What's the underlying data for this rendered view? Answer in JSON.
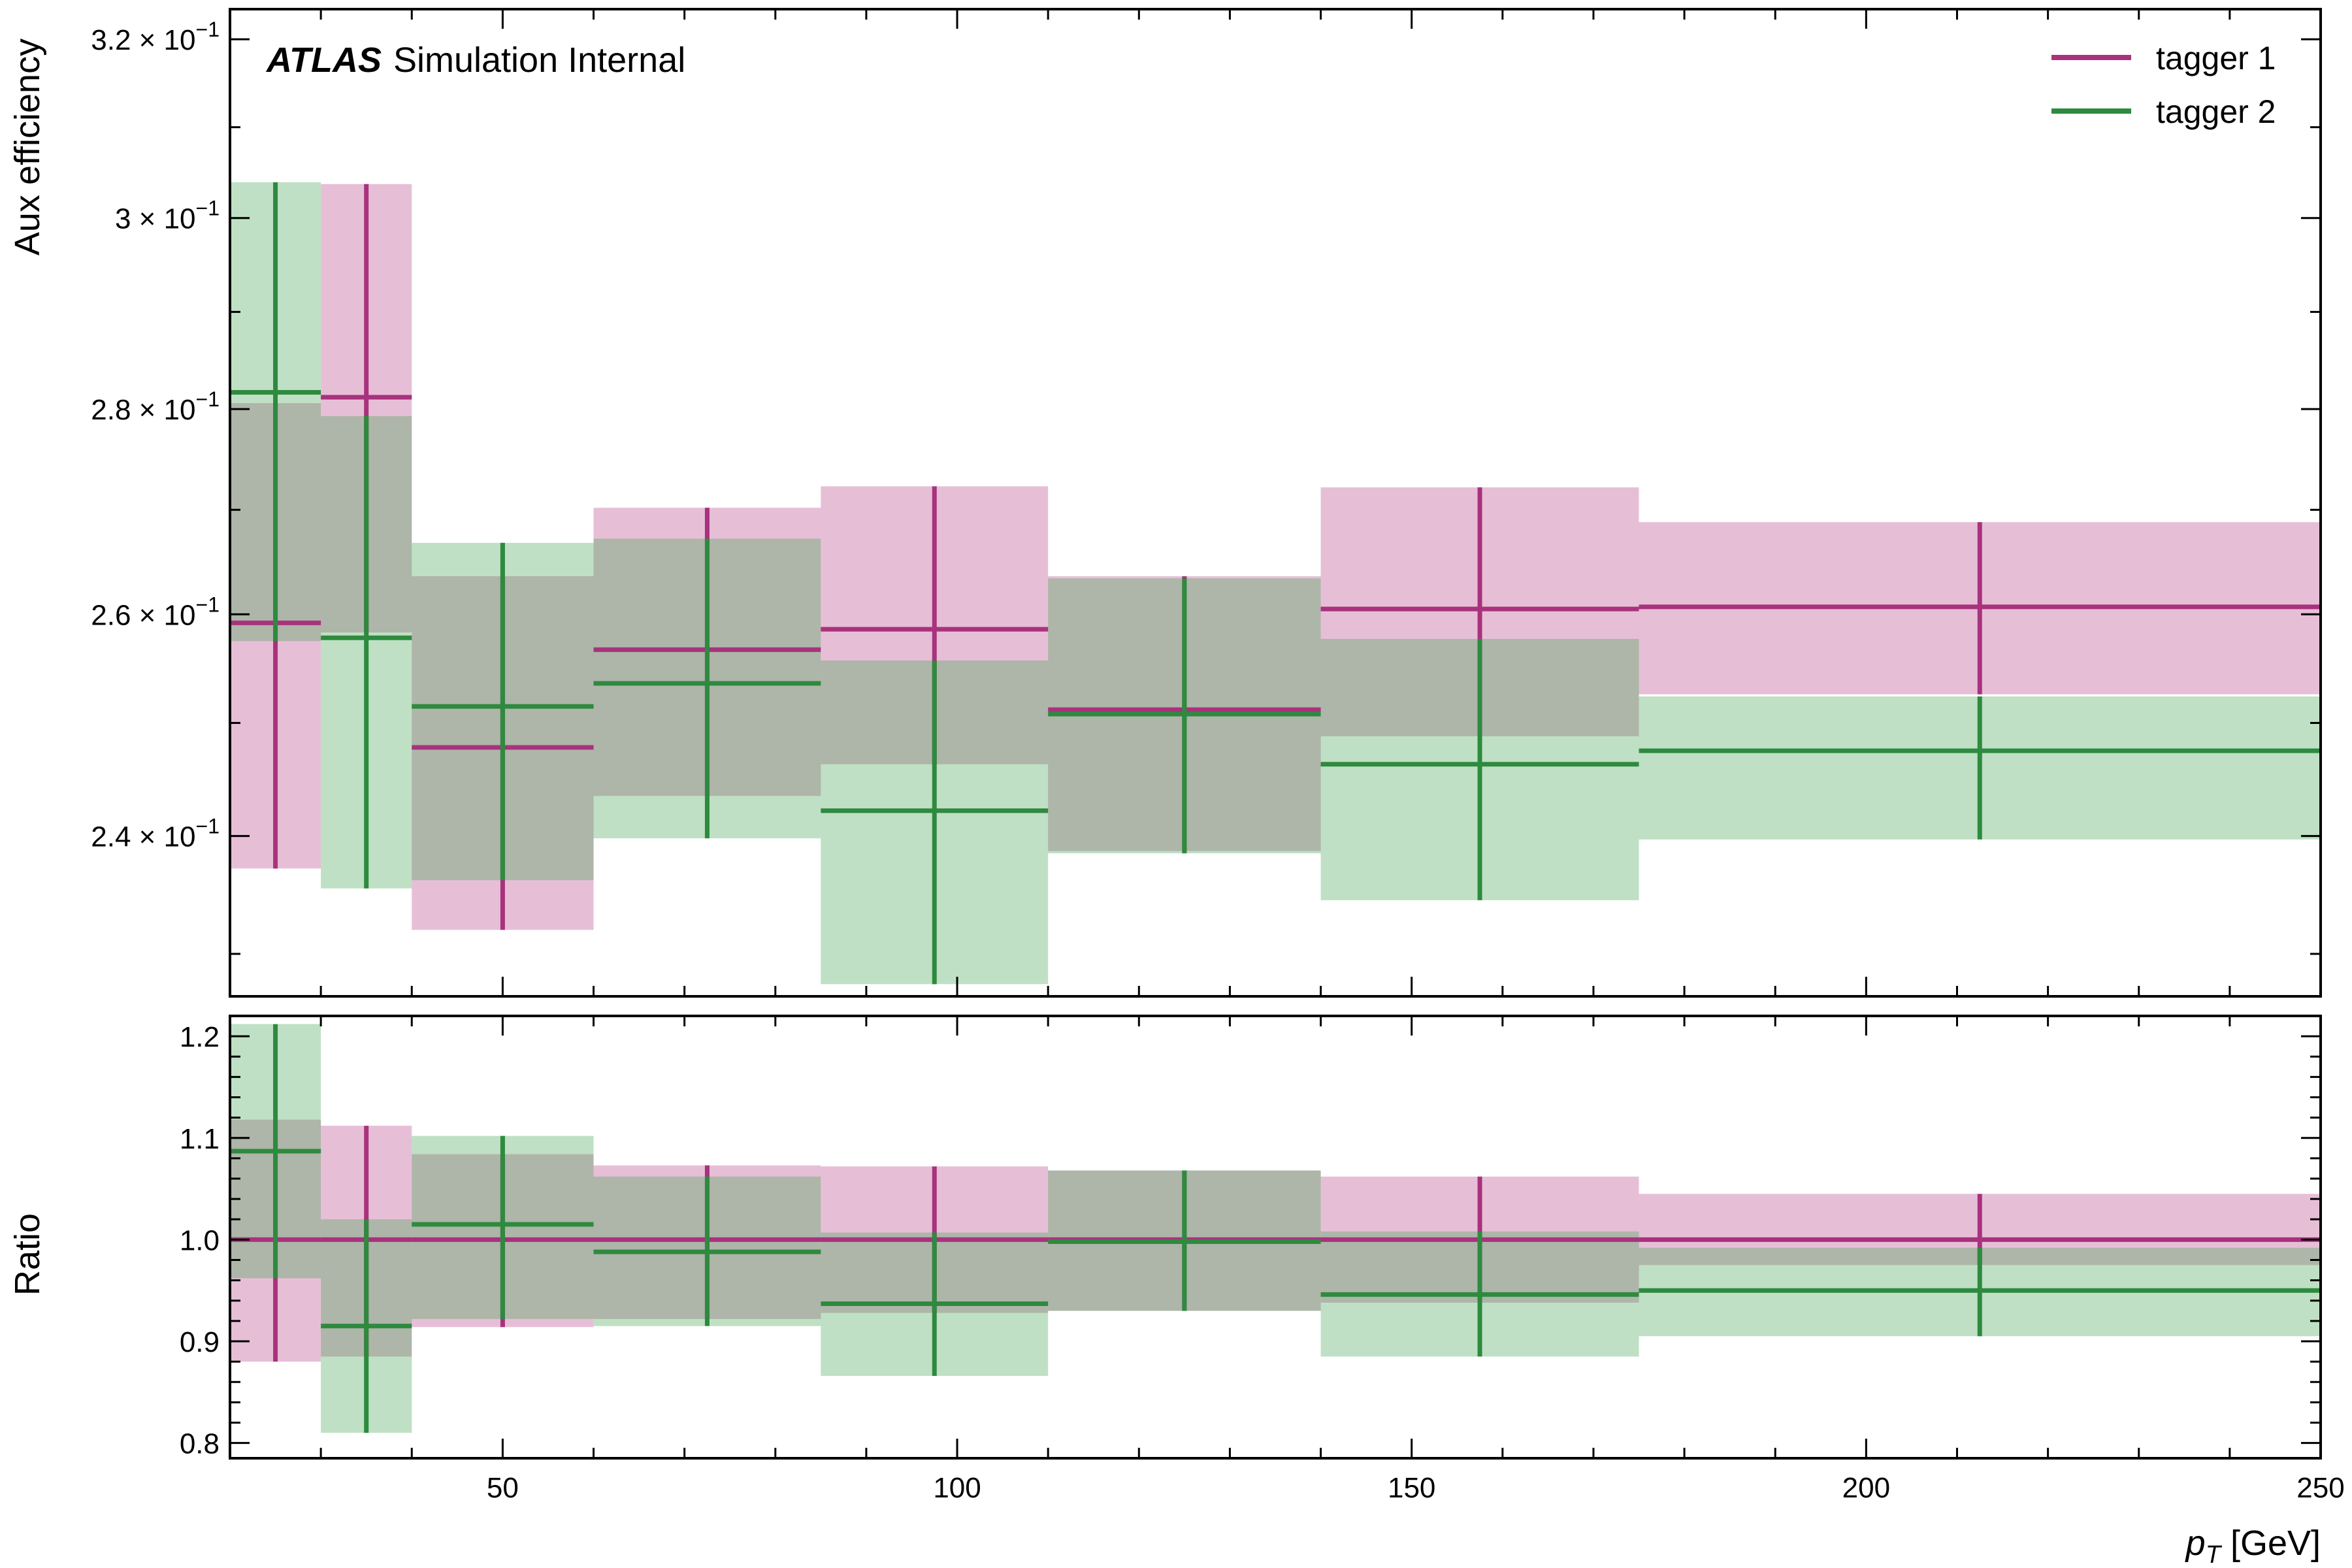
{
  "chart_data": {
    "type": "binned_efficiency_with_ratio",
    "annotation": {
      "experiment": "ATLAS",
      "label": "Simulation Internal"
    },
    "xlabel": {
      "var": "p",
      "sub": "T",
      "unit": " [GeV]"
    },
    "xlim": [
      20,
      250
    ],
    "xticks": [
      50,
      100,
      150,
      200,
      250
    ],
    "bin_edges": [
      20,
      30,
      40,
      60,
      85,
      110,
      140,
      175,
      250
    ],
    "top_panel": {
      "ylabel": "Aux efficiency",
      "yscale": "log",
      "ylim": [
        0.2265,
        0.3235
      ],
      "yticks": [
        {
          "value": 0.24,
          "mantissa": "2.4"
        },
        {
          "value": 0.26,
          "mantissa": "2.6"
        },
        {
          "value": 0.28,
          "mantissa": "2.8"
        },
        {
          "value": 0.3,
          "mantissa": "3"
        },
        {
          "value": 0.32,
          "mantissa": "3.2"
        }
      ],
      "tick_base": "× 10",
      "tick_exponent": "−1"
    },
    "ratio_panel": {
      "ylabel": "Ratio",
      "ylim": [
        0.785,
        1.22
      ],
      "yticks": [
        "0.8",
        "0.9",
        "1.0",
        "1.1",
        "1.2"
      ]
    },
    "legend": {
      "placement": "top-right"
    },
    "series": [
      {
        "name": "tagger 1",
        "color": "#a8327d",
        "band_color": "rgba(190,88,150,0.38)",
        "efficiency": [
          0.2592,
          0.2812,
          0.2478,
          0.2567,
          0.2586,
          0.2512,
          0.2605,
          0.2607
        ],
        "eff_low": [
          0.2372,
          0.2583,
          0.232,
          0.2435,
          0.2463,
          0.2387,
          0.2488,
          0.2526
        ],
        "eff_high": [
          0.2806,
          0.3037,
          0.2636,
          0.2702,
          0.2723,
          0.2636,
          0.2722,
          0.2688
        ],
        "ratio": [
          1.0,
          1.0,
          1.0,
          1.0,
          1.0,
          1.0,
          1.0,
          1.0
        ],
        "ratio_low": [
          0.88,
          0.885,
          0.914,
          0.922,
          0.928,
          0.93,
          0.938,
          0.975
        ],
        "ratio_high": [
          1.118,
          1.112,
          1.084,
          1.073,
          1.072,
          1.068,
          1.062,
          1.045
        ]
      },
      {
        "name": "tagger 2",
        "color": "#2e8a3e",
        "band_color": "rgba(60,160,75,0.33)",
        "efficiency": [
          0.2817,
          0.2578,
          0.2515,
          0.2536,
          0.2422,
          0.2508,
          0.2463,
          0.2475
        ],
        "eff_low": [
          0.2575,
          0.2355,
          0.2362,
          0.2398,
          0.2275,
          0.2385,
          0.2345,
          0.2397
        ],
        "eff_high": [
          0.3039,
          0.2793,
          0.2668,
          0.2672,
          0.2557,
          0.2634,
          0.2577,
          0.2524
        ],
        "ratio": [
          1.087,
          0.915,
          1.015,
          0.988,
          0.937,
          0.998,
          0.946,
          0.95
        ],
        "ratio_low": [
          0.962,
          0.81,
          0.922,
          0.915,
          0.866,
          0.93,
          0.885,
          0.905
        ],
        "ratio_high": [
          1.212,
          1.02,
          1.102,
          1.062,
          1.007,
          1.068,
          1.008,
          0.992
        ]
      }
    ]
  }
}
